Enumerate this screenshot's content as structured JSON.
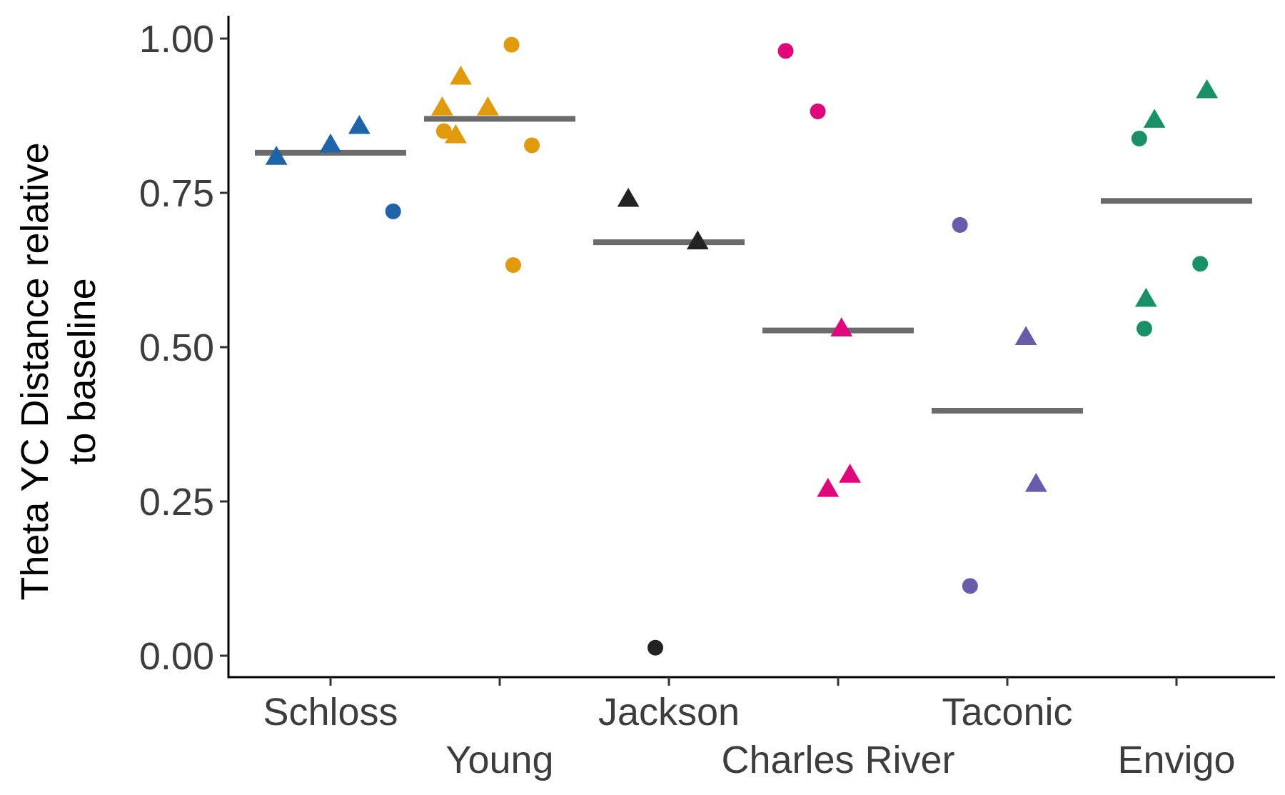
{
  "chart_data": {
    "type": "scatter",
    "title": "",
    "xlabel": "",
    "ylabel_lines": [
      "Theta YC Distance relative",
      "to baseline"
    ],
    "ylim": [
      0,
      1.0
    ],
    "yticks": [
      "0.00",
      "0.25",
      "0.50",
      "0.75",
      "1.00"
    ],
    "ytick_values": [
      0,
      0.25,
      0.5,
      0.75,
      1.0
    ],
    "grid": false,
    "legend": "none",
    "categories": [
      "Schloss",
      "Young",
      "Jackson",
      "Charles River",
      "Taconic",
      "Envigo"
    ],
    "colors": {
      "Schloss": "#1f64a8",
      "Young": "#e09a0c",
      "Jackson": "#222222",
      "Charles River": "#e0077d",
      "Taconic": "#6a5aab",
      "Envigo": "#1a9068"
    },
    "mean_line_color": "#6b6b6b",
    "groups": [
      {
        "name": "Schloss",
        "mean": 0.815,
        "points": [
          {
            "shape": "triangle",
            "y": 0.81,
            "jitter": -0.32
          },
          {
            "shape": "triangle",
            "y": 0.83,
            "jitter": 0.0
          },
          {
            "shape": "triangle",
            "y": 0.86,
            "jitter": 0.17
          },
          {
            "shape": "circle",
            "y": 0.72,
            "jitter": 0.37
          }
        ]
      },
      {
        "name": "Young",
        "mean": 0.87,
        "points": [
          {
            "shape": "triangle",
            "y": 0.89,
            "jitter": -0.34
          },
          {
            "shape": "triangle",
            "y": 0.94,
            "jitter": -0.23
          },
          {
            "shape": "circle",
            "y": 0.85,
            "jitter": -0.33
          },
          {
            "shape": "triangle",
            "y": 0.845,
            "jitter": -0.26
          },
          {
            "shape": "triangle",
            "y": 0.89,
            "jitter": -0.07
          },
          {
            "shape": "circle",
            "y": 0.99,
            "jitter": 0.07
          },
          {
            "shape": "circle",
            "y": 0.827,
            "jitter": 0.19
          },
          {
            "shape": "circle",
            "y": 0.633,
            "jitter": 0.08
          }
        ]
      },
      {
        "name": "Jackson",
        "mean": 0.67,
        "points": [
          {
            "shape": "triangle",
            "y": 0.742,
            "jitter": -0.24
          },
          {
            "shape": "triangle",
            "y": 0.673,
            "jitter": 0.17
          },
          {
            "shape": "circle",
            "y": 0.013,
            "jitter": -0.08
          }
        ]
      },
      {
        "name": "Charles River",
        "mean": 0.527,
        "points": [
          {
            "shape": "circle",
            "y": 0.98,
            "jitter": -0.31
          },
          {
            "shape": "circle",
            "y": 0.882,
            "jitter": -0.12
          },
          {
            "shape": "triangle",
            "y": 0.532,
            "jitter": 0.02
          },
          {
            "shape": "triangle",
            "y": 0.272,
            "jitter": -0.06
          },
          {
            "shape": "triangle",
            "y": 0.295,
            "jitter": 0.07
          }
        ]
      },
      {
        "name": "Taconic",
        "mean": 0.397,
        "points": [
          {
            "shape": "circle",
            "y": 0.698,
            "jitter": -0.28
          },
          {
            "shape": "triangle",
            "y": 0.518,
            "jitter": 0.11
          },
          {
            "shape": "triangle",
            "y": 0.28,
            "jitter": 0.17
          },
          {
            "shape": "circle",
            "y": 0.113,
            "jitter": -0.22
          }
        ]
      },
      {
        "name": "Envigo",
        "mean": 0.737,
        "points": [
          {
            "shape": "circle",
            "y": 0.838,
            "jitter": -0.22
          },
          {
            "shape": "triangle",
            "y": 0.87,
            "jitter": -0.13
          },
          {
            "shape": "triangle",
            "y": 0.918,
            "jitter": 0.18
          },
          {
            "shape": "circle",
            "y": 0.635,
            "jitter": 0.14
          },
          {
            "shape": "triangle",
            "y": 0.58,
            "jitter": -0.18
          },
          {
            "shape": "circle",
            "y": 0.53,
            "jitter": -0.19
          }
        ]
      }
    ]
  }
}
